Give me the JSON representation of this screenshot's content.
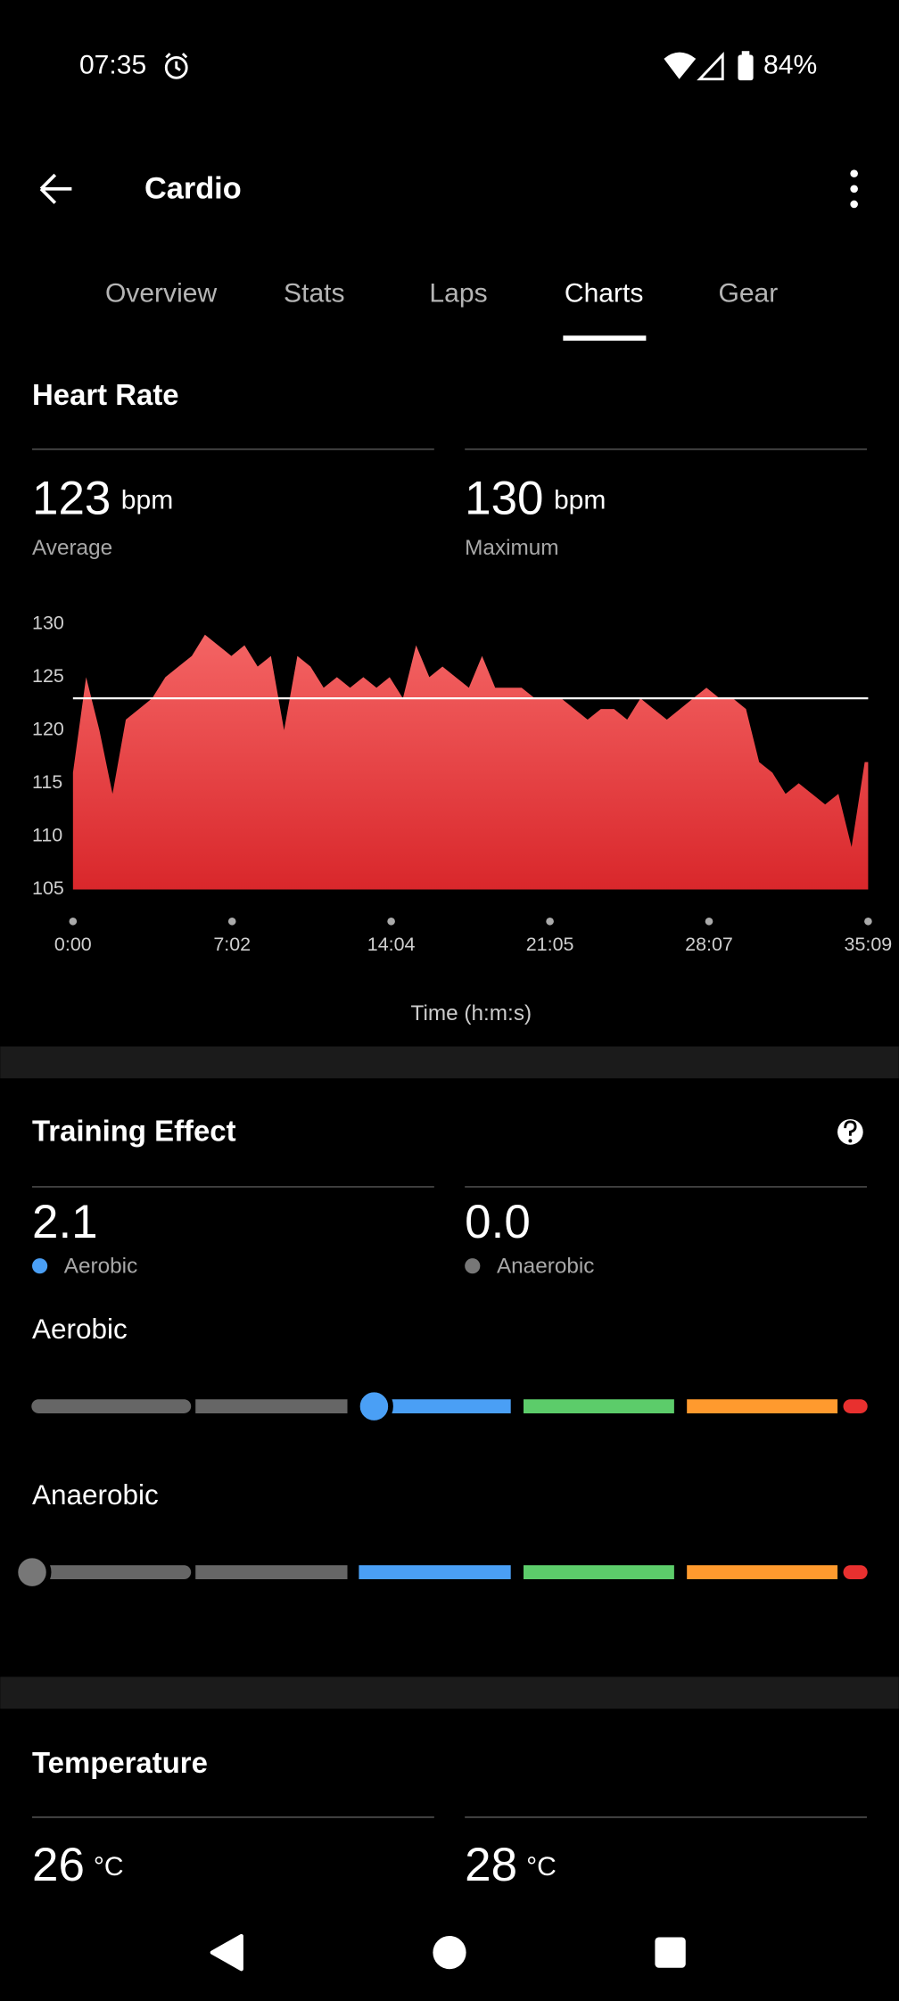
{
  "status_bar": {
    "time": "07:35",
    "battery": "84%"
  },
  "app_bar": {
    "title": "Cardio"
  },
  "tabs": [
    "Overview",
    "Stats",
    "Laps",
    "Charts",
    "Gear"
  ],
  "heart_rate": {
    "title": "Heart Rate",
    "stats": [
      {
        "value": 123,
        "unit": "bpm",
        "label": "Average"
      },
      {
        "value": 130,
        "unit": "bpm",
        "label": "Maximum"
      }
    ]
  },
  "chart_data": {
    "type": "area",
    "x_label": "Time (h:m:s)",
    "color": "#f46464",
    "x": [
      0,
      35,
      70,
      105,
      140,
      175,
      210,
      245,
      280,
      315,
      350,
      385,
      420,
      455,
      490,
      525,
      560,
      595,
      630,
      665,
      700,
      735,
      770,
      805,
      840,
      875,
      910,
      945,
      980,
      1015,
      1050,
      1085,
      1120,
      1155,
      1190,
      1225,
      1260,
      1295,
      1330,
      1365,
      1400,
      1435,
      1470,
      1505,
      1540,
      1575,
      1610,
      1645,
      1680,
      1715,
      1750,
      1785,
      1820,
      1855,
      1890,
      1925,
      1960,
      1995,
      2030,
      2065,
      2100,
      2109
    ],
    "values": [
      116,
      125,
      120,
      114,
      121,
      122,
      123,
      125,
      126,
      127,
      129,
      128,
      127,
      128,
      126,
      127,
      120,
      127,
      126,
      124,
      125,
      124,
      125,
      124,
      125,
      123,
      128,
      125,
      126,
      125,
      124,
      127,
      124,
      124,
      124,
      123,
      123,
      123,
      122,
      121,
      122,
      122,
      121,
      123,
      122,
      121,
      122,
      123,
      124,
      123,
      123,
      122,
      117,
      116,
      114,
      115,
      114,
      113,
      114,
      109,
      117,
      117
    ],
    "xlim": [
      0,
      2109
    ],
    "xticks": [
      {
        "value": 0,
        "label": "0:00"
      },
      {
        "value": 422,
        "label": "7:02"
      },
      {
        "value": 844,
        "label": "14:04"
      },
      {
        "value": 1265,
        "label": "21:05"
      },
      {
        "value": 1687,
        "label": "28:07"
      },
      {
        "value": 2109,
        "label": "35:09"
      }
    ],
    "ylim": [
      105,
      130
    ],
    "yticks": [
      105,
      110,
      115,
      120,
      125,
      130
    ]
  },
  "training_effect": {
    "title": "Training Effect",
    "stats": [
      {
        "value": 2.1,
        "value_label": "2.1",
        "label": "Aerobic",
        "color": "#4a9ff5"
      },
      {
        "value": 0,
        "value_label": "0.0",
        "label": "Anaerobic",
        "color": "#777777"
      }
    ]
  },
  "temperature": {
    "title": "Temperature",
    "stats": [
      {
        "value": 26,
        "unit": "°C"
      },
      {
        "value": 28,
        "unit": "°C"
      }
    ]
  }
}
